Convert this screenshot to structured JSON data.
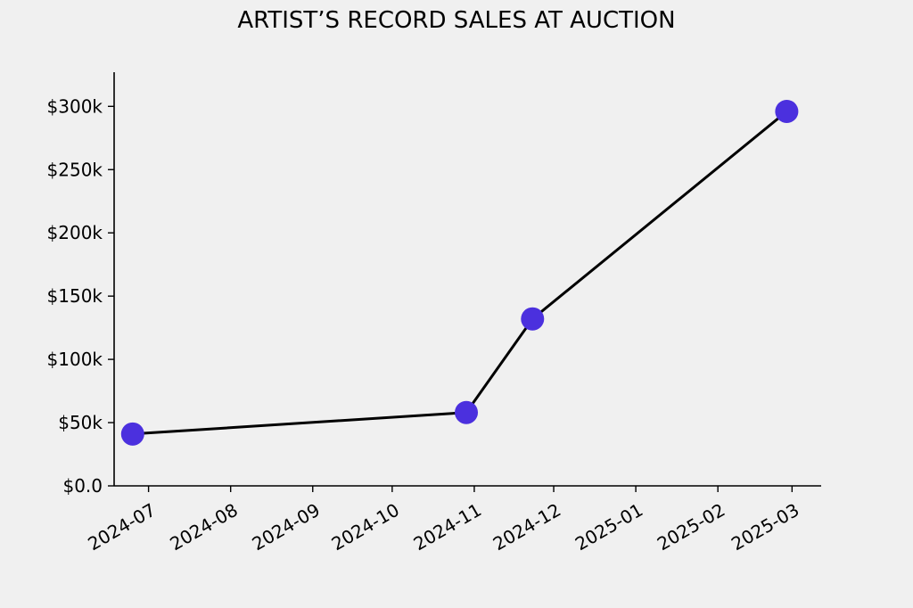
{
  "chart_data": {
    "type": "line",
    "title": "ARTIST’S RECORD SALES AT AUCTION",
    "xlabel": "",
    "ylabel": "",
    "x_axis": {
      "type": "date",
      "range": [
        "2024-06-18",
        "2025-03-12"
      ],
      "ticks": [
        "2024-07-01",
        "2024-08-01",
        "2024-09-01",
        "2024-10-01",
        "2024-11-01",
        "2024-12-01",
        "2025-01-01",
        "2025-02-01",
        "2025-03-01"
      ],
      "tick_labels": [
        "2024-07",
        "2024-08",
        "2024-09",
        "2024-10",
        "2024-11",
        "2024-12",
        "2025-01",
        "2025-02",
        "2025-03"
      ]
    },
    "y_axis": {
      "range": [
        0,
        327000
      ],
      "ticks": [
        0,
        50000,
        100000,
        150000,
        200000,
        250000,
        300000
      ],
      "tick_labels": [
        "$0.0",
        "$50k",
        "$100k",
        "$150k",
        "$200k",
        "$250k",
        "$300k"
      ]
    },
    "grid": false,
    "legend": "none",
    "series": [
      {
        "x": [
          "2024-06-25",
          "2024-10-29",
          "2024-11-23",
          "2025-02-27"
        ],
        "y": [
          41000,
          58000,
          132000,
          296000
        ]
      }
    ],
    "colors": {
      "line": "#000000",
      "marker": "#4b30de",
      "background": "#f0f0f0",
      "axis": "#000000"
    }
  }
}
